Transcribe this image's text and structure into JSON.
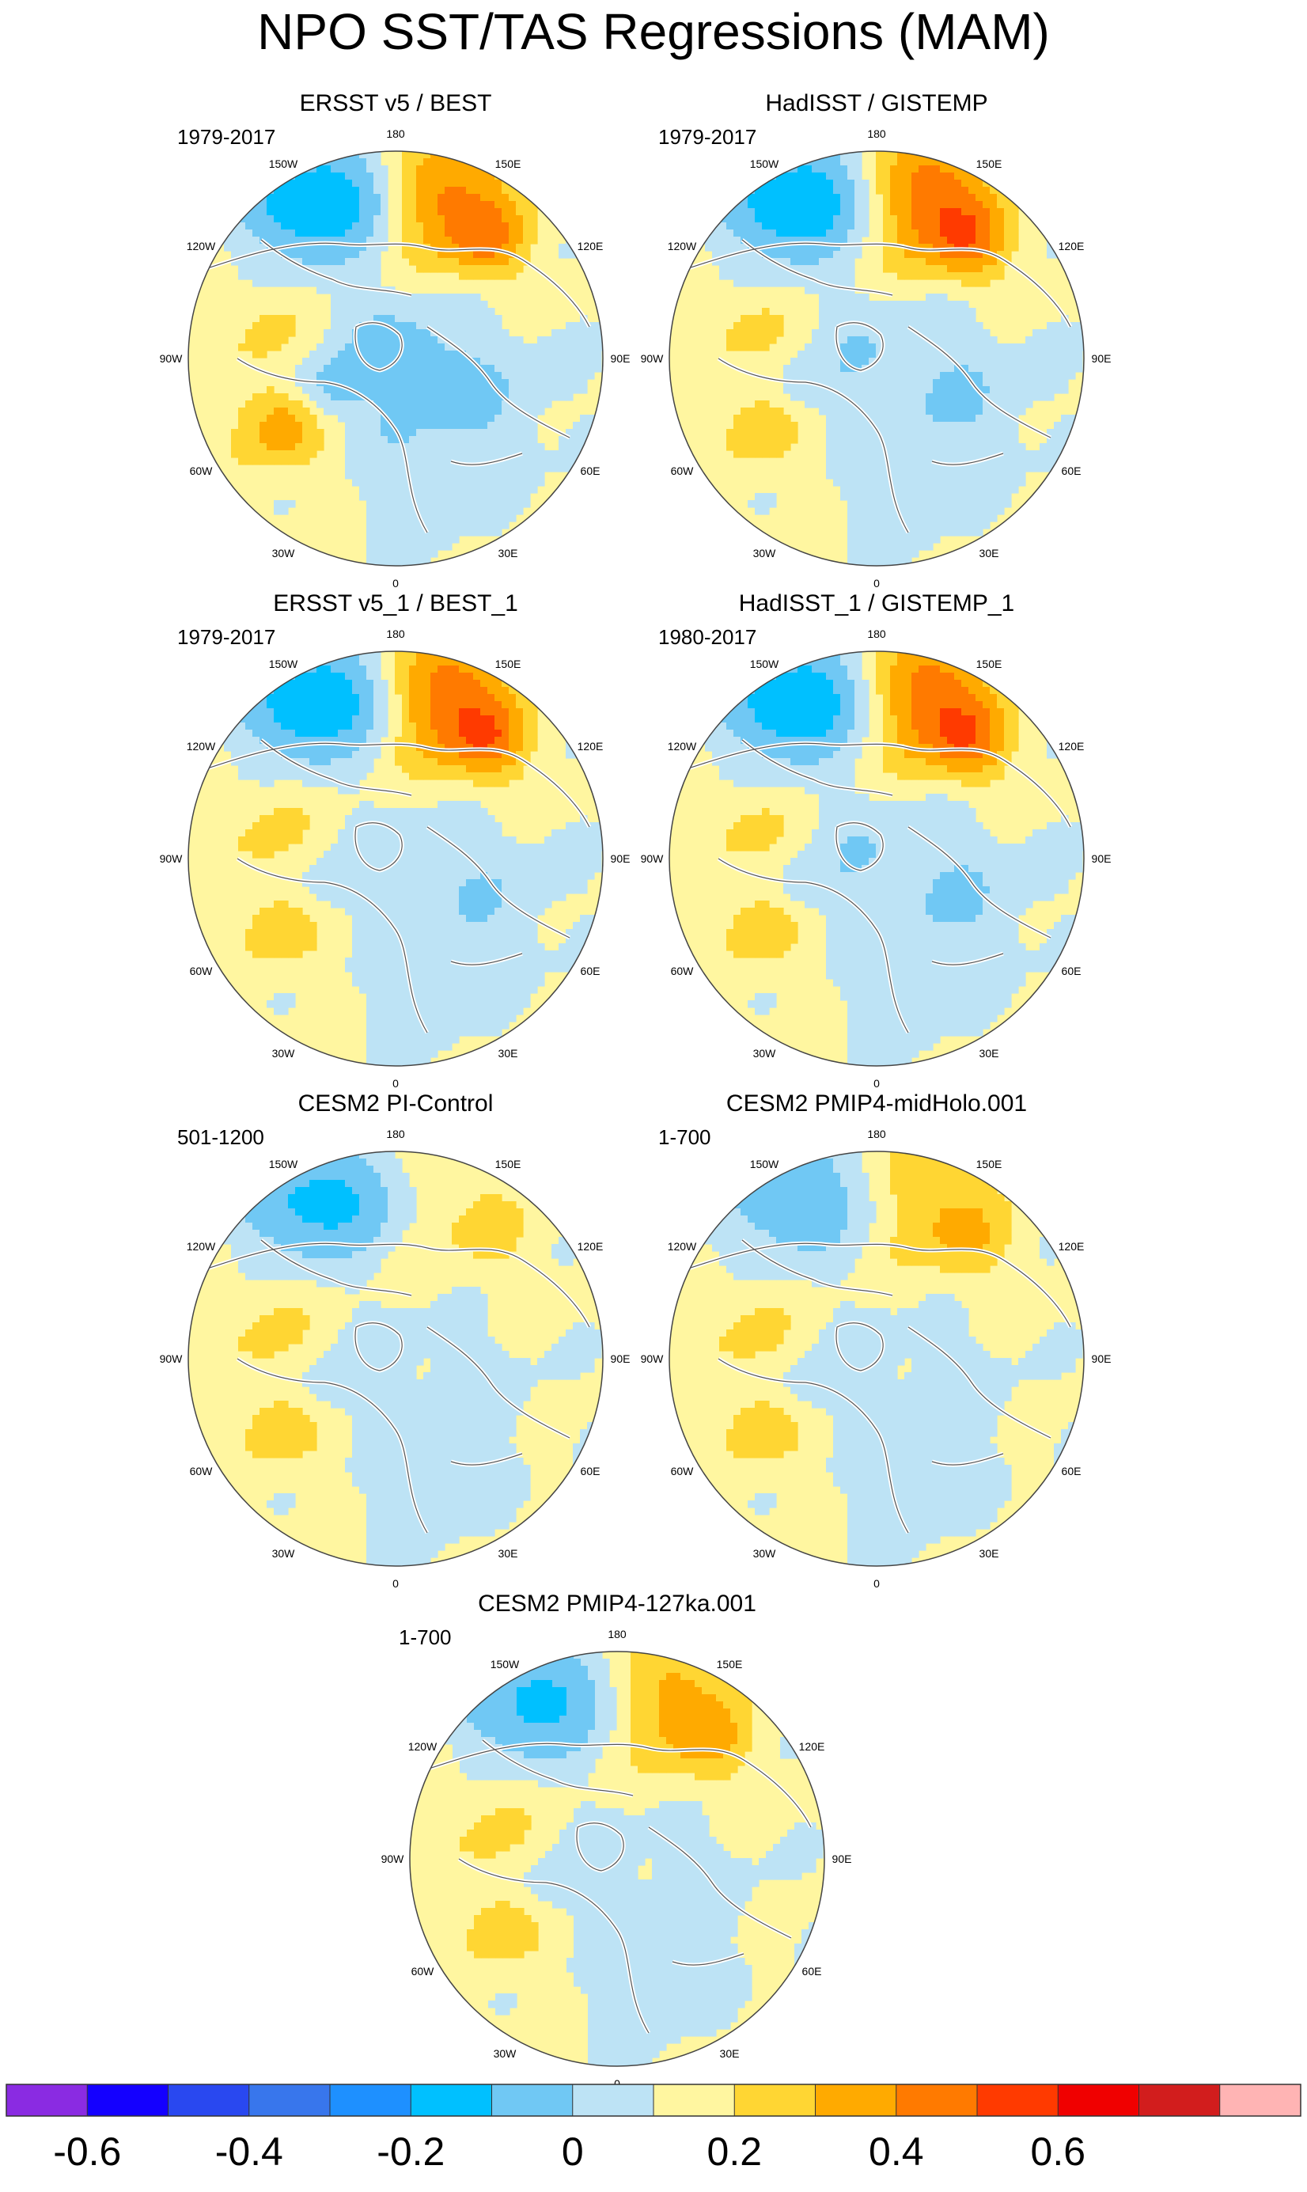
{
  "title": "NPO SST/TAS Regressions (MAM)",
  "lon_labels": [
    "180",
    "150E",
    "120E",
    "90E",
    "60E",
    "30E",
    "0",
    "30W",
    "60W",
    "90W",
    "120W",
    "150W"
  ],
  "panels": [
    {
      "title": "ERSST v5 / BEST",
      "years": "1979-2017",
      "pattern": [
        -0.3,
        0.35,
        -0.15,
        0.25,
        -0.1,
        0.1
      ]
    },
    {
      "title": "HadISST / GISTEMP",
      "years": "1979-2017",
      "pattern": [
        -0.3,
        0.4,
        -0.1,
        0.15,
        -0.1,
        0.1
      ]
    },
    {
      "title": "ERSST v5_1 / BEST_1",
      "years": "1979-2017",
      "pattern": [
        -0.3,
        0.4,
        -0.05,
        0.15,
        -0.1,
        0.1
      ]
    },
    {
      "title": "HadISST_1 / GISTEMP_1",
      "years": "1980-2017",
      "pattern": [
        -0.3,
        0.4,
        -0.1,
        0.15,
        -0.1,
        0.1
      ]
    },
    {
      "title": "CESM2 PI-Control",
      "years": "501-1200",
      "pattern": [
        -0.25,
        0.1,
        -0.05,
        0.15,
        -0.05,
        0.1
      ]
    },
    {
      "title": "CESM2 PMIP4-midHolo.001",
      "years": "1-700",
      "pattern": [
        -0.2,
        0.2,
        -0.05,
        0.15,
        -0.05,
        0.1
      ]
    },
    {
      "title": "CESM2 PMIP4-127ka.001",
      "years": "1-700",
      "pattern": [
        -0.25,
        0.25,
        -0.05,
        0.15,
        -0.05,
        0.1
      ]
    }
  ],
  "colorbar": {
    "colors": [
      "#8a2be2",
      "#1400ff",
      "#2948f0",
      "#3876ec",
      "#1e90ff",
      "#00c0ff",
      "#70c8f4",
      "#bde3f5",
      "#fff6a0",
      "#ffd633",
      "#ffaa00",
      "#ff7a00",
      "#ff3a00",
      "#f00000",
      "#d21d1d",
      "#ffb4b4"
    ],
    "tick_labels": [
      "-0.6",
      "-0.4",
      "-0.2",
      "0",
      "0.2",
      "0.4",
      "0.6"
    ]
  }
}
